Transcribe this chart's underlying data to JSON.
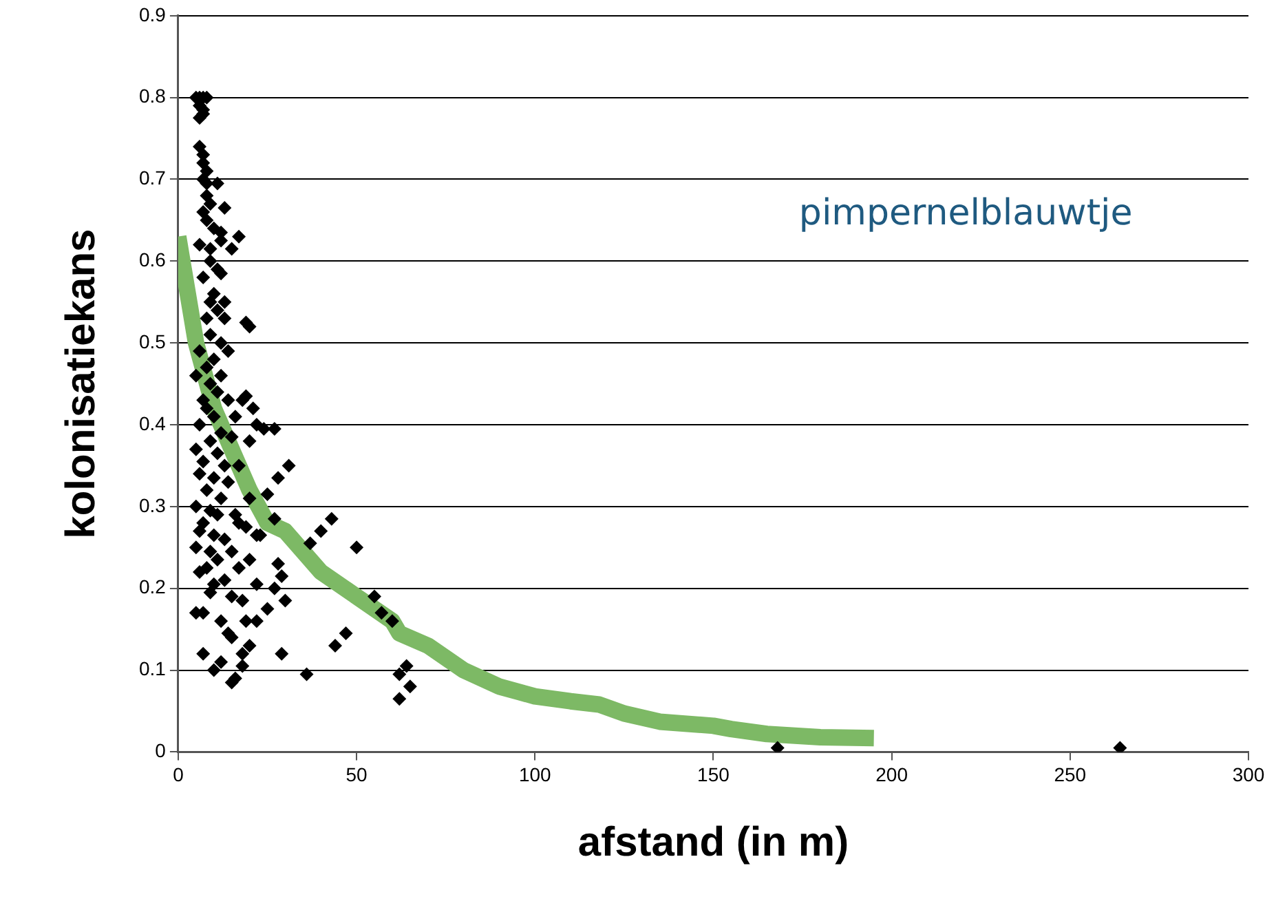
{
  "chart_data": {
    "type": "scatter",
    "xlabel": "afstand (in m)",
    "ylabel": "kolonisatiekans",
    "annotations": [
      "pimpernelblauwtje"
    ],
    "xlim": [
      0,
      300
    ],
    "xticks": [
      0,
      50,
      100,
      150,
      200,
      250,
      300
    ],
    "ylim": [
      0,
      0.9
    ],
    "yticks": [
      0,
      0.1,
      0.2,
      0.3,
      0.4,
      0.5,
      0.6,
      0.7,
      0.8,
      0.9
    ],
    "grid": "y",
    "legend": false,
    "series": [
      {
        "marker": "diamond",
        "color": "#000000",
        "x": [
          5,
          6,
          7,
          8,
          6,
          7,
          7,
          6,
          6,
          7,
          7,
          8,
          7,
          8,
          11,
          8,
          9,
          7,
          13,
          8,
          10,
          12,
          17,
          6,
          9,
          12,
          15,
          9,
          11,
          7,
          12,
          10,
          9,
          13,
          11,
          8,
          13,
          20,
          19,
          9,
          12,
          6,
          10,
          14,
          8,
          12,
          5,
          9,
          11,
          7,
          14,
          18,
          19,
          21,
          8,
          10,
          16,
          22,
          6,
          12,
          24,
          27,
          9,
          15,
          20,
          5,
          11,
          7,
          13,
          17,
          31,
          6,
          10,
          14,
          28,
          8,
          12,
          20,
          25,
          5,
          9,
          11,
          16,
          27,
          7,
          17,
          19,
          43,
          6,
          10,
          23,
          40,
          13,
          22,
          37,
          5,
          9,
          15,
          50,
          11,
          20,
          28,
          8,
          17,
          29,
          6,
          10,
          13,
          22,
          27,
          9,
          15,
          18,
          30,
          25,
          7,
          12,
          5,
          22,
          19,
          55,
          57,
          14,
          15,
          20,
          44,
          47,
          60,
          7,
          12,
          18,
          29,
          10,
          18,
          16,
          15,
          36,
          62,
          64,
          65,
          62,
          168,
          264
        ],
        "values": [
          0.8,
          0.8,
          0.8,
          0.8,
          0.79,
          0.785,
          0.78,
          0.775,
          0.74,
          0.73,
          0.72,
          0.71,
          0.7,
          0.695,
          0.695,
          0.68,
          0.67,
          0.66,
          0.665,
          0.65,
          0.64,
          0.635,
          0.63,
          0.62,
          0.615,
          0.625,
          0.615,
          0.6,
          0.59,
          0.58,
          0.585,
          0.56,
          0.55,
          0.55,
          0.54,
          0.53,
          0.53,
          0.52,
          0.525,
          0.51,
          0.5,
          0.49,
          0.48,
          0.49,
          0.47,
          0.46,
          0.46,
          0.45,
          0.44,
          0.43,
          0.43,
          0.43,
          0.435,
          0.42,
          0.42,
          0.41,
          0.41,
          0.4,
          0.4,
          0.39,
          0.395,
          0.395,
          0.38,
          0.385,
          0.38,
          0.37,
          0.365,
          0.355,
          0.35,
          0.35,
          0.35,
          0.34,
          0.335,
          0.33,
          0.335,
          0.32,
          0.31,
          0.31,
          0.315,
          0.3,
          0.295,
          0.29,
          0.29,
          0.285,
          0.28,
          0.28,
          0.275,
          0.285,
          0.27,
          0.265,
          0.265,
          0.27,
          0.26,
          0.265,
          0.255,
          0.25,
          0.245,
          0.245,
          0.25,
          0.235,
          0.235,
          0.23,
          0.225,
          0.225,
          0.215,
          0.22,
          0.205,
          0.21,
          0.205,
          0.2,
          0.195,
          0.19,
          0.185,
          0.185,
          0.175,
          0.17,
          0.16,
          0.17,
          0.16,
          0.16,
          0.19,
          0.17,
          0.145,
          0.14,
          0.13,
          0.13,
          0.145,
          0.16,
          0.12,
          0.11,
          0.12,
          0.12,
          0.1,
          0.105,
          0.09,
          0.085,
          0.095,
          0.095,
          0.105,
          0.08,
          0.065,
          0.005,
          0.005
        ]
      },
      {
        "type": "line",
        "marker": "none",
        "color": "#7db965",
        "x": [
          0,
          5,
          10,
          15,
          20,
          25,
          30,
          40,
          50,
          60,
          62,
          70,
          80,
          90,
          100,
          110,
          118,
          125,
          135,
          150,
          155,
          165,
          180,
          195
        ],
        "values": [
          0.63,
          0.5,
          0.42,
          0.37,
          0.32,
          0.28,
          0.27,
          0.22,
          0.19,
          0.16,
          0.145,
          0.13,
          0.1,
          0.08,
          0.068,
          0.062,
          0.058,
          0.047,
          0.037,
          0.032,
          0.028,
          0.022,
          0.018,
          0.017
        ]
      }
    ]
  }
}
